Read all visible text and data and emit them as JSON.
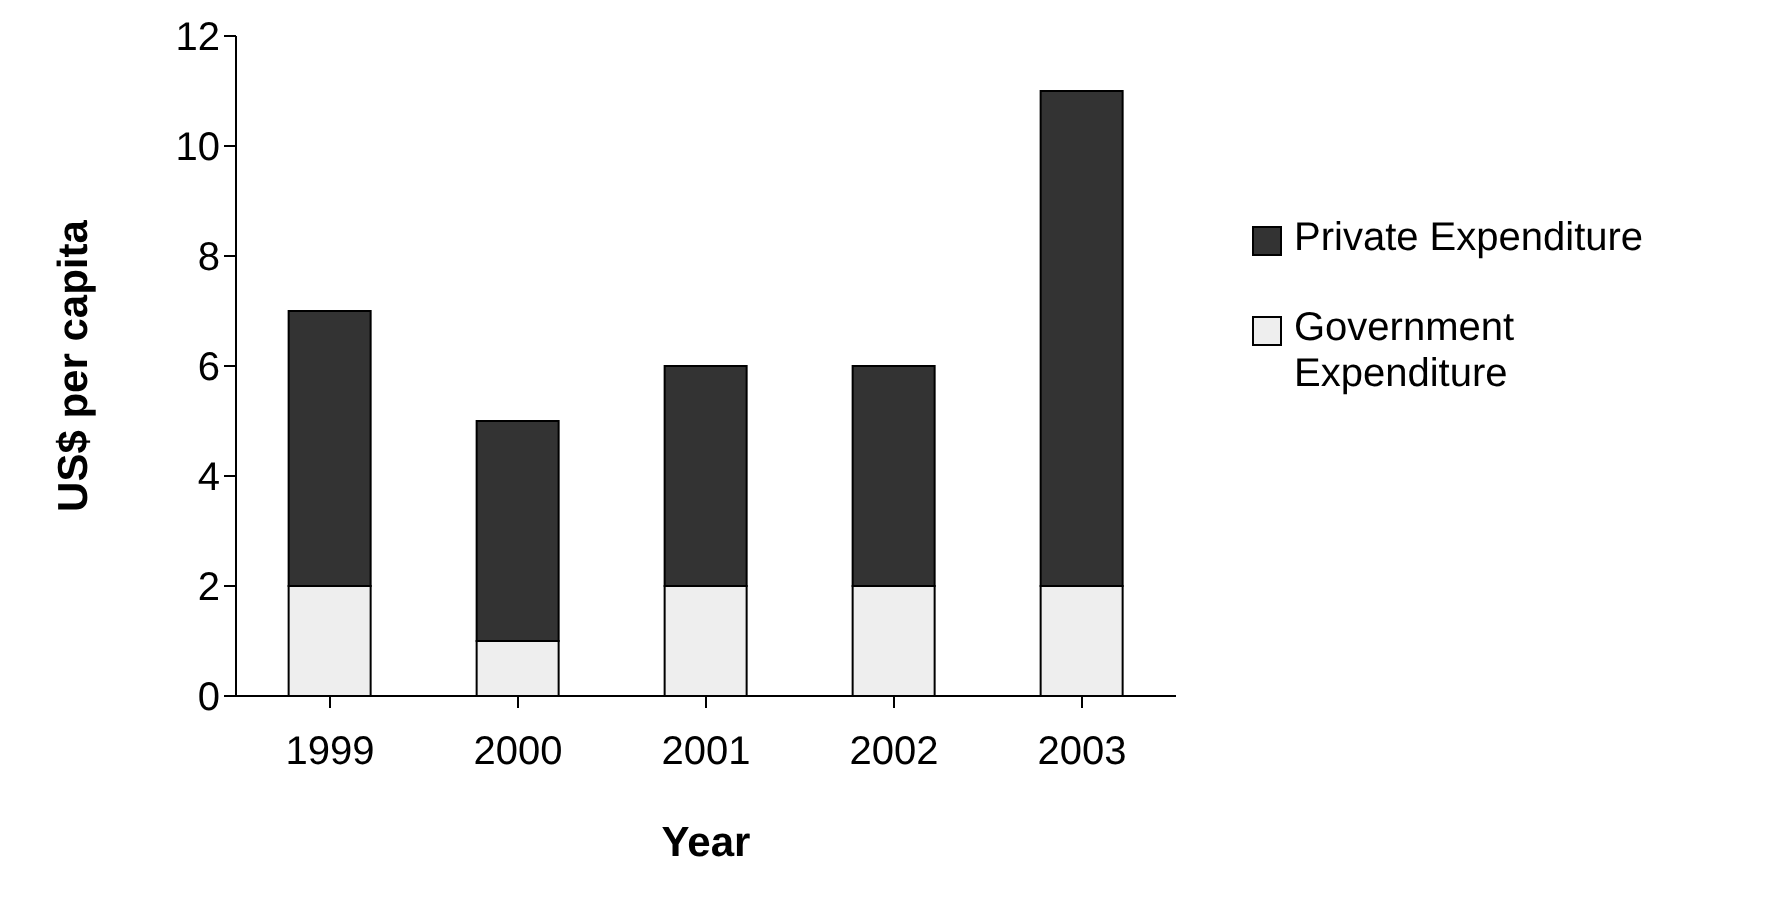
{
  "chart_data": {
    "type": "bar",
    "stacked": true,
    "xlabel": "Year",
    "ylabel": "US$ per capita",
    "categories": [
      "1999",
      "2000",
      "2001",
      "2002",
      "2003"
    ],
    "series": [
      {
        "name": "Government Expenditure",
        "color": "#eeeeee",
        "values": [
          2,
          1,
          2,
          2,
          2
        ]
      },
      {
        "name": "Private Expenditure",
        "color": "#333333",
        "values": [
          5,
          4,
          4,
          4,
          9
        ]
      }
    ],
    "ylim": [
      0,
      12
    ],
    "yticks": [
      0,
      2,
      4,
      6,
      8,
      10,
      12
    ],
    "legend": "right"
  }
}
